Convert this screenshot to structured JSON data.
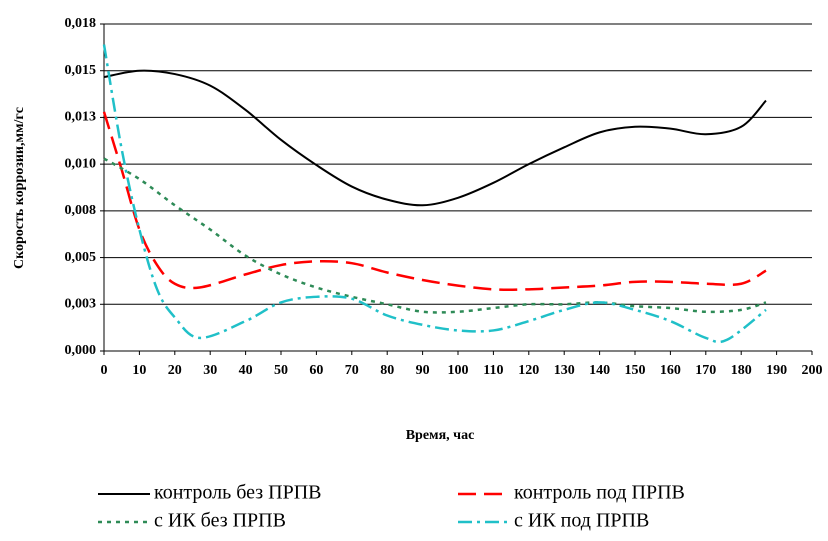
{
  "chart_data": {
    "type": "line",
    "xlabel": "Время, час",
    "ylabel": "Скорость коррозии,мм/гс",
    "xlim": [
      0,
      200
    ],
    "xticks": [
      0,
      10,
      20,
      30,
      40,
      50,
      60,
      70,
      80,
      90,
      100,
      110,
      120,
      130,
      140,
      150,
      160,
      170,
      180,
      190,
      200
    ],
    "ylim": [
      0,
      0.0175
    ],
    "yticks": [
      {
        "value": 0,
        "label": "0,000"
      },
      {
        "value": 0.0025,
        "label": "0,003"
      },
      {
        "value": 0.005,
        "label": "0,005"
      },
      {
        "value": 0.0075,
        "label": "0,008"
      },
      {
        "value": 0.01,
        "label": "0,010"
      },
      {
        "value": 0.0125,
        "label": "0,013"
      },
      {
        "value": 0.015,
        "label": "0,015"
      },
      {
        "value": 0.0175,
        "label": "0,018"
      }
    ],
    "grid": true,
    "legend": "bottom",
    "series": [
      {
        "name": "контроль без ПРПВ",
        "color": "#000000",
        "dash": "solid",
        "x": [
          0,
          10,
          20,
          30,
          40,
          50,
          60,
          70,
          80,
          90,
          100,
          110,
          120,
          130,
          140,
          150,
          160,
          170,
          180,
          187
        ],
        "values": [
          0.01466,
          0.015,
          0.01482,
          0.0142,
          0.0129,
          0.0113,
          0.00995,
          0.0088,
          0.0081,
          0.0078,
          0.0082,
          0.009,
          0.01,
          0.0109,
          0.0117,
          0.012,
          0.0119,
          0.0116,
          0.012,
          0.0134
        ]
      },
      {
        "name": "контроль под ПРПВ",
        "color": "#ff0000",
        "dash": "dashed",
        "x": [
          0,
          5,
          10,
          15,
          20,
          27,
          40,
          50,
          60,
          70,
          80,
          90,
          100,
          110,
          120,
          130,
          140,
          150,
          160,
          170,
          180,
          187
        ],
        "values": [
          0.0128,
          0.0097,
          0.0065,
          0.0046,
          0.0036,
          0.0034,
          0.0041,
          0.0046,
          0.0048,
          0.0047,
          0.0042,
          0.0038,
          0.0035,
          0.0033,
          0.0033,
          0.0034,
          0.0035,
          0.0037,
          0.0037,
          0.0036,
          0.0036,
          0.0043
        ]
      },
      {
        "name": "с ИК без ПРПВ",
        "color": "#2e8b57",
        "dash": "dotted",
        "x": [
          0,
          10,
          20,
          30,
          40,
          50,
          60,
          70,
          80,
          90,
          100,
          110,
          120,
          130,
          140,
          150,
          160,
          170,
          180,
          187
        ],
        "values": [
          0.0103,
          0.0092,
          0.0078,
          0.0065,
          0.0051,
          0.0041,
          0.0034,
          0.0029,
          0.0025,
          0.0021,
          0.0021,
          0.0023,
          0.0025,
          0.0025,
          0.0026,
          0.0024,
          0.0023,
          0.0021,
          0.0022,
          0.0026
        ]
      },
      {
        "name": "с ИК под ПРПВ",
        "color": "#20c0c8",
        "dash": "dashdot",
        "x": [
          0,
          5,
          10,
          15,
          20,
          27,
          40,
          50,
          60,
          70,
          80,
          90,
          100,
          110,
          120,
          130,
          140,
          150,
          160,
          170,
          176,
          187
        ],
        "values": [
          0.0164,
          0.0108,
          0.0065,
          0.0033,
          0.0018,
          0.0007,
          0.0016,
          0.0026,
          0.0029,
          0.0028,
          0.0019,
          0.0014,
          0.0011,
          0.0011,
          0.0016,
          0.0022,
          0.0026,
          0.0022,
          0.0016,
          0.0007,
          0.0006,
          0.0022
        ]
      }
    ]
  }
}
